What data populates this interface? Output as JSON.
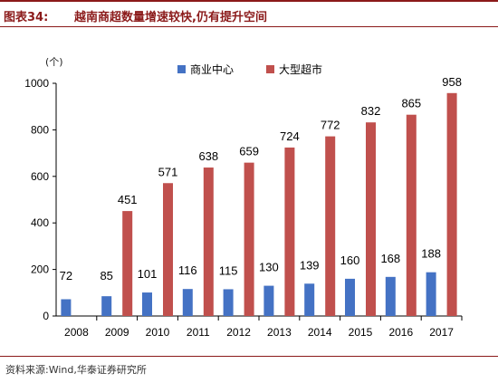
{
  "figure": {
    "label": "图表34:",
    "title": "越南商超数量增速较快,仍有提升空间",
    "source": "资料来源:Wind,华泰证券研究所"
  },
  "chart_data": {
    "type": "bar",
    "unit": "(个)",
    "categories": [
      "2008",
      "2009",
      "2010",
      "2011",
      "2012",
      "2013",
      "2014",
      "2015",
      "2016",
      "2017"
    ],
    "series": [
      {
        "name": "商业中心",
        "color": "#4472c4",
        "values": [
          72,
          85,
          101,
          116,
          115,
          130,
          139,
          160,
          168,
          188
        ]
      },
      {
        "name": "大型超市",
        "color": "#c0504d",
        "values": [
          null,
          451,
          571,
          638,
          659,
          724,
          772,
          832,
          865,
          958
        ]
      }
    ],
    "ylim": [
      0,
      1000
    ],
    "yticks": [
      0,
      200,
      400,
      600,
      800,
      1000
    ],
    "legend_position": "top-center",
    "grid": false
  }
}
